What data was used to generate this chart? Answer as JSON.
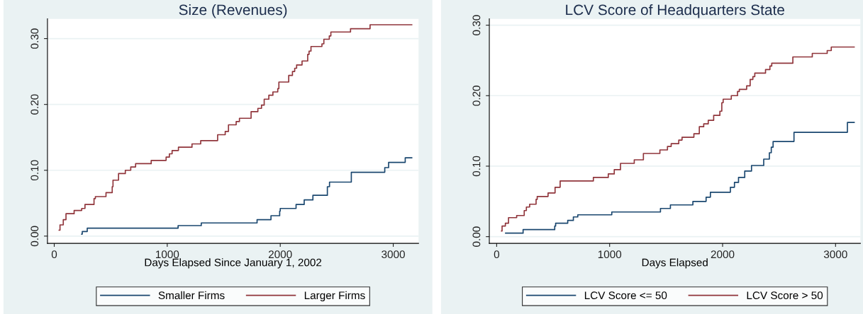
{
  "chart_data": [
    {
      "type": "step",
      "title": "Size (Revenues)",
      "xlabel": "Days Elapsed Since January 1, 2002",
      "xlim": [
        -60,
        3224
      ],
      "xticks": [
        0,
        1000,
        2000,
        3000
      ],
      "ylim": [
        -0.011,
        0.33
      ],
      "yticks": [
        {
          "value": 0,
          "label": "0.00"
        },
        {
          "value": 0.1,
          "label": "0.10"
        },
        {
          "value": 0.2,
          "label": "0.20"
        },
        {
          "value": 0.3,
          "label": "0.30"
        }
      ],
      "grid": "y",
      "legend": "bottom",
      "series": [
        {
          "name": "Smaller Firms",
          "color": "#1a476f",
          "x": [
            243,
            248,
            292,
            1096,
            1301,
            1795,
            1918,
            1995,
            2000,
            2140,
            2212,
            2289,
            2417,
            2436,
            2629,
            2925,
            2959,
            3106,
            3164
          ],
          "values": [
            0.003,
            0.007,
            0.012,
            0.016,
            0.02,
            0.025,
            0.031,
            0.038,
            0.042,
            0.048,
            0.055,
            0.062,
            0.075,
            0.082,
            0.097,
            0.104,
            0.112,
            0.119,
            0.119
          ]
        },
        {
          "name": "Larger Firms",
          "color": "#90353b",
          "x": [
            43,
            51,
            80,
            104,
            176,
            243,
            272,
            352,
            364,
            458,
            513,
            520,
            569,
            629,
            677,
            720,
            858,
            990,
            1019,
            1043,
            1099,
            1219,
            1296,
            1446,
            1513,
            1542,
            1610,
            1639,
            1742,
            1802,
            1834,
            1858,
            1899,
            1935,
            1978,
            1988,
            2075,
            2108,
            2128,
            2145,
            2193,
            2243,
            2255,
            2272,
            2369,
            2386,
            2434,
            2448,
            2622,
            2795,
            3164
          ],
          "values": [
            0.009,
            0.017,
            0.025,
            0.034,
            0.039,
            0.042,
            0.048,
            0.057,
            0.06,
            0.066,
            0.075,
            0.085,
            0.095,
            0.1,
            0.105,
            0.11,
            0.115,
            0.12,
            0.125,
            0.13,
            0.135,
            0.14,
            0.145,
            0.154,
            0.159,
            0.169,
            0.174,
            0.179,
            0.189,
            0.194,
            0.199,
            0.208,
            0.214,
            0.219,
            0.224,
            0.234,
            0.244,
            0.25,
            0.255,
            0.26,
            0.266,
            0.276,
            0.281,
            0.288,
            0.292,
            0.299,
            0.304,
            0.31,
            0.315,
            0.321,
            0.321
          ]
        }
      ]
    },
    {
      "type": "step",
      "title": "LCV Score of Headquarters State",
      "xlabel": "Days Elapsed",
      "xlim": [
        -65,
        3220
      ],
      "xticks": [
        0,
        1000,
        2000,
        3000
      ],
      "ylim": [
        -0.0095,
        0.309
      ],
      "yticks": [
        {
          "value": 0,
          "label": "0.00"
        },
        {
          "value": 0.1,
          "label": "0.10"
        },
        {
          "value": 0.2,
          "label": "0.20"
        },
        {
          "value": 0.3,
          "label": "0.30"
        }
      ],
      "grid": "y",
      "legend": "bottom",
      "series": [
        {
          "name": "LCV Score <= 50",
          "color": "#1a476f",
          "x": [
            79,
            234,
            514,
            522,
            629,
            679,
            718,
            1019,
            1450,
            1538,
            1737,
            1854,
            1892,
            2069,
            2105,
            2141,
            2196,
            2256,
            2364,
            2414,
            2431,
            2447,
            2632,
            3105,
            3165
          ],
          "values": [
            0.005,
            0.01,
            0.015,
            0.019,
            0.023,
            0.028,
            0.031,
            0.035,
            0.04,
            0.045,
            0.05,
            0.056,
            0.063,
            0.07,
            0.077,
            0.084,
            0.093,
            0.101,
            0.11,
            0.119,
            0.127,
            0.135,
            0.148,
            0.162,
            0.162
          ]
        },
        {
          "name": "LCV Score > 50",
          "color": "#90353b",
          "x": [
            43,
            48,
            77,
            105,
            177,
            244,
            263,
            292,
            349,
            359,
            455,
            517,
            562,
            856,
            988,
            1041,
            1096,
            1218,
            1299,
            1445,
            1512,
            1545,
            1612,
            1641,
            1746,
            1794,
            1833,
            1873,
            1921,
            1976,
            1993,
            2005,
            2077,
            2132,
            2148,
            2213,
            2244,
            2268,
            2285,
            2380,
            2419,
            2435,
            2622,
            2794,
            2926,
            2962,
            3165
          ],
          "values": [
            0.008,
            0.015,
            0.019,
            0.027,
            0.03,
            0.037,
            0.042,
            0.046,
            0.053,
            0.057,
            0.062,
            0.07,
            0.079,
            0.084,
            0.089,
            0.095,
            0.104,
            0.109,
            0.118,
            0.123,
            0.128,
            0.132,
            0.137,
            0.141,
            0.146,
            0.156,
            0.16,
            0.165,
            0.172,
            0.178,
            0.19,
            0.195,
            0.2,
            0.206,
            0.209,
            0.214,
            0.223,
            0.227,
            0.232,
            0.237,
            0.242,
            0.246,
            0.255,
            0.26,
            0.264,
            0.269,
            0.269
          ]
        }
      ]
    }
  ]
}
